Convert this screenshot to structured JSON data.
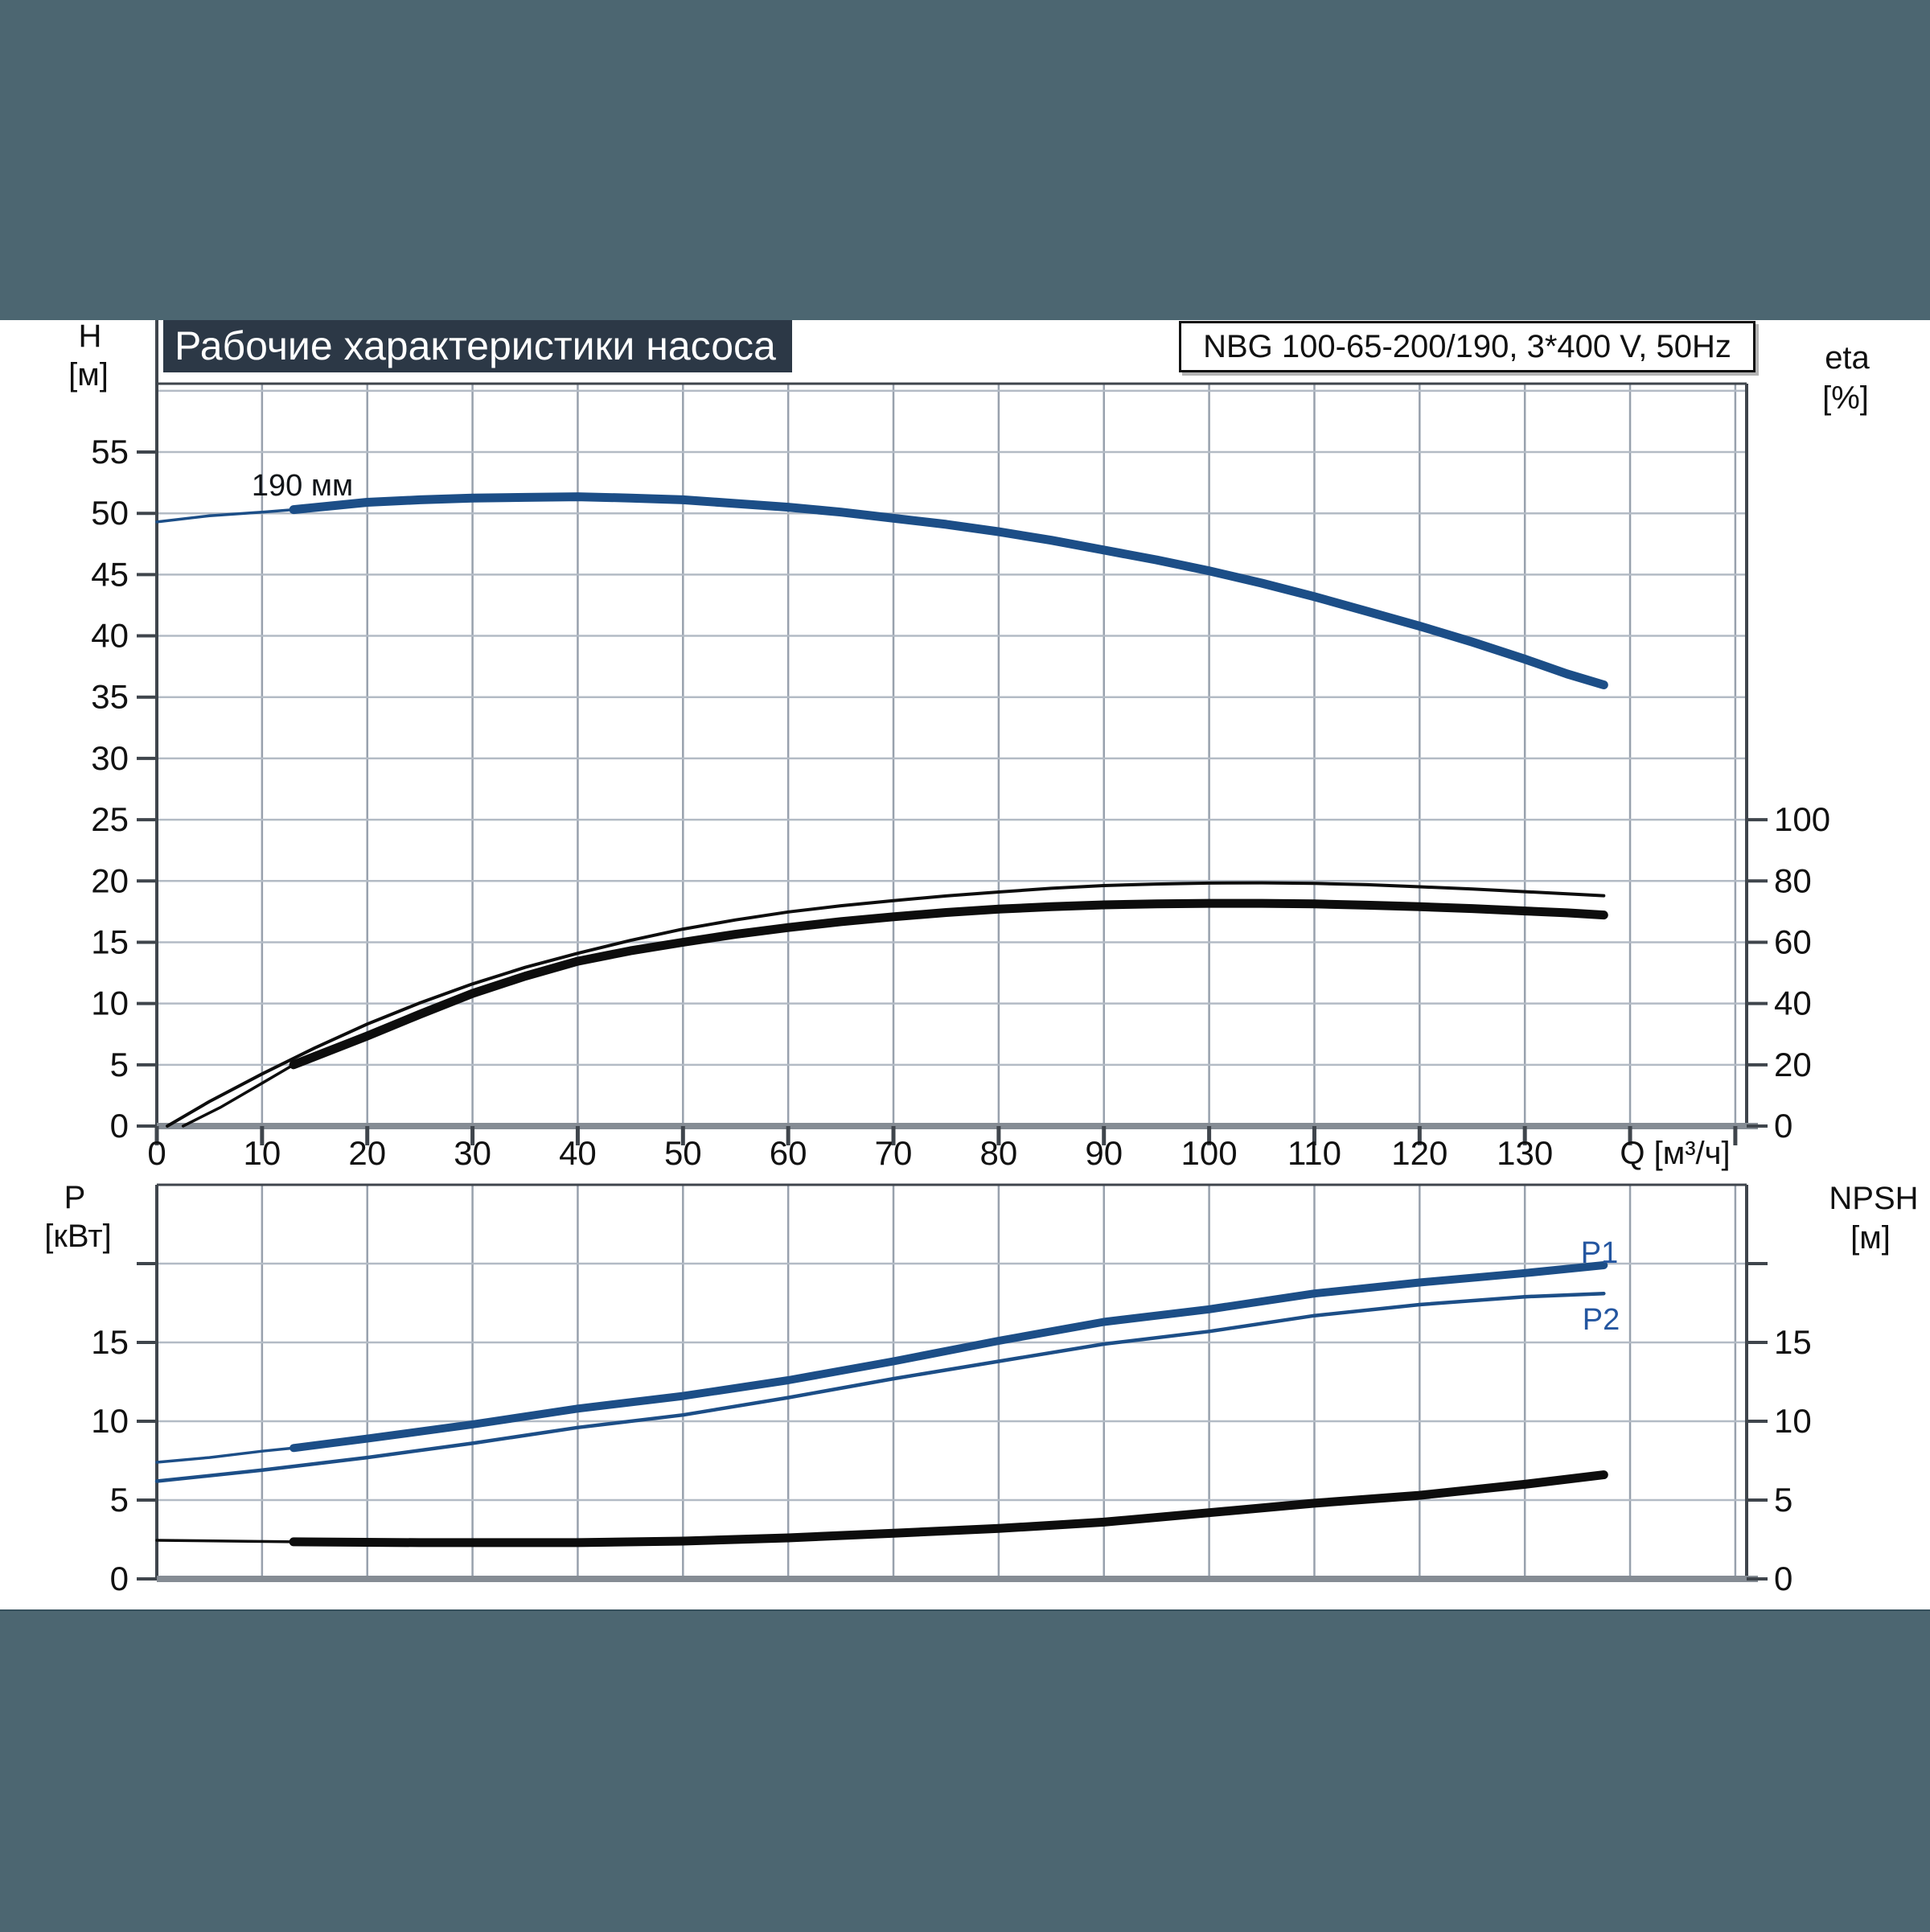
{
  "banner": {
    "title": "Рабочие характеристики насоса",
    "model": "NBG 100-65-200/190, 3*400 V, 50Hz"
  },
  "axes": {
    "h": {
      "label": "H",
      "unit": "[м]"
    },
    "eta": {
      "label": "eta",
      "unit": "[%]"
    },
    "q": {
      "label": "Q [м³/ч]"
    },
    "p": {
      "label": "P",
      "unit": "[кВт]"
    },
    "npsh": {
      "label": "NPSH",
      "unit": "[м]"
    }
  },
  "colors": {
    "band": "#4c6671",
    "title_box": "#2c3846",
    "curve_blue": "#1c4e87",
    "curve_black": "#0d0d0d",
    "grid_vertical": "#98a1ad",
    "grid_horizontal": "#b3bbc5",
    "frame": "#3f454c",
    "baseline": "#858c94"
  },
  "chart_data": [
    {
      "type": "line",
      "title": "Рабочие характеристики насоса",
      "xlabel": "Q [м³/ч]",
      "ylabel_left": "H [м]",
      "ylabel_right": "eta [%]",
      "x_ticks_labeled": [
        0,
        10,
        20,
        30,
        40,
        50,
        60,
        70,
        80,
        90,
        100,
        110,
        120,
        130
      ],
      "x_grid_max": 150,
      "xlim": [
        0,
        151
      ],
      "ylim_left": [
        0,
        60.6
      ],
      "y_left_tick_labels": [
        55,
        50,
        45,
        40,
        35,
        30,
        25,
        20,
        15,
        10,
        5,
        0
      ],
      "y_right_tick_labels": [
        100,
        80,
        60,
        40,
        20,
        0
      ],
      "right_axis_scale": "eta 100% aligns with H 25 м (eta = 4 × H)",
      "grid": true,
      "series": [
        {
          "name": "head-190mm",
          "label": "190 мм",
          "axis": "left",
          "color": "#1c4e87",
          "width": 11,
          "lead": [
            [
              0,
              49.3
            ],
            [
              5,
              49.8
            ],
            [
              10,
              50.1
            ],
            [
              13,
              50.3
            ]
          ],
          "points": [
            [
              13,
              50.3
            ],
            [
              20,
              50.9
            ],
            [
              25,
              51.1
            ],
            [
              30,
              51.25
            ],
            [
              35,
              51.3
            ],
            [
              40,
              51.35
            ],
            [
              45,
              51.25
            ],
            [
              50,
              51.1
            ],
            [
              55,
              50.8
            ],
            [
              60,
              50.5
            ],
            [
              65,
              50.1
            ],
            [
              70,
              49.6
            ],
            [
              75,
              49.1
            ],
            [
              80,
              48.5
            ],
            [
              85,
              47.8
            ],
            [
              90,
              47.0
            ],
            [
              95,
              46.2
            ],
            [
              100,
              45.3
            ],
            [
              105,
              44.3
            ],
            [
              110,
              43.2
            ],
            [
              115,
              42.0
            ],
            [
              120,
              40.8
            ],
            [
              125,
              39.5
            ],
            [
              130,
              38.1
            ],
            [
              134,
              36.9
            ],
            [
              137.5,
              36.0
            ]
          ]
        },
        {
          "name": "eta-pump-thin",
          "label": "",
          "axis": "right",
          "color": "#0d0d0d",
          "width": 4,
          "points": [
            [
              1,
              0
            ],
            [
              5,
              8
            ],
            [
              10,
              17
            ],
            [
              15,
              25.5
            ],
            [
              20,
              33.3
            ],
            [
              25,
              40.2
            ],
            [
              30,
              46.4
            ],
            [
              35,
              51.8
            ],
            [
              40,
              56.4
            ],
            [
              45,
              60.6
            ],
            [
              50,
              64.3
            ],
            [
              55,
              67.3
            ],
            [
              60,
              69.9
            ],
            [
              65,
              71.9
            ],
            [
              70,
              73.6
            ],
            [
              75,
              75.1
            ],
            [
              80,
              76.4
            ],
            [
              85,
              77.6
            ],
            [
              90,
              78.5
            ],
            [
              95,
              79.0
            ],
            [
              100,
              79.3
            ],
            [
              105,
              79.4
            ],
            [
              110,
              79.2
            ],
            [
              115,
              78.8
            ],
            [
              120,
              78.1
            ],
            [
              125,
              77.4
            ],
            [
              130,
              76.5
            ],
            [
              134,
              75.8
            ],
            [
              137.5,
              75.2
            ]
          ]
        },
        {
          "name": "eta-total-thick",
          "label": "",
          "axis": "right",
          "color": "#0d0d0d",
          "width": 11,
          "lead": [
            [
              2.5,
              0
            ],
            [
              6,
              6
            ],
            [
              10,
              14
            ],
            [
              13,
              20
            ]
          ],
          "points": [
            [
              13,
              20
            ],
            [
              20,
              29.4
            ],
            [
              25,
              36.5
            ],
            [
              30,
              43.3
            ],
            [
              35,
              48.9
            ],
            [
              40,
              53.8
            ],
            [
              45,
              57.2
            ],
            [
              50,
              60.0
            ],
            [
              55,
              62.6
            ],
            [
              60,
              64.8
            ],
            [
              65,
              66.7
            ],
            [
              70,
              68.3
            ],
            [
              75,
              69.7
            ],
            [
              80,
              70.8
            ],
            [
              85,
              71.6
            ],
            [
              90,
              72.2
            ],
            [
              95,
              72.5
            ],
            [
              100,
              72.7
            ],
            [
              105,
              72.7
            ],
            [
              110,
              72.5
            ],
            [
              115,
              72.1
            ],
            [
              120,
              71.6
            ],
            [
              125,
              71.0
            ],
            [
              130,
              70.2
            ],
            [
              134,
              69.6
            ],
            [
              137.5,
              68.9
            ]
          ]
        }
      ]
    },
    {
      "type": "line",
      "xlabel": "Q [м³/ч]",
      "ylabel_left": "P [кВт]",
      "ylabel_right": "NPSH [м]",
      "x_grid_max": 150,
      "xlim": [
        0,
        151
      ],
      "ylim_left": [
        0,
        25
      ],
      "y_left_tick_labels": [
        15,
        10,
        5,
        0
      ],
      "y_right_tick_labels": [
        15,
        10,
        5,
        0
      ],
      "grid": true,
      "series": [
        {
          "name": "p1",
          "label": "P1",
          "axis": "left",
          "color": "#1c4e87",
          "width": 10,
          "lead": [
            [
              0,
              7.4
            ],
            [
              5,
              7.7
            ],
            [
              10,
              8.1
            ],
            [
              13,
              8.3
            ]
          ],
          "points": [
            [
              13,
              8.3
            ],
            [
              20,
              8.9
            ],
            [
              30,
              9.8
            ],
            [
              40,
              10.8
            ],
            [
              50,
              11.6
            ],
            [
              60,
              12.6
            ],
            [
              70,
              13.8
            ],
            [
              80,
              15.1
            ],
            [
              90,
              16.3
            ],
            [
              100,
              17.1
            ],
            [
              110,
              18.1
            ],
            [
              120,
              18.8
            ],
            [
              130,
              19.4
            ],
            [
              137.5,
              19.9
            ]
          ]
        },
        {
          "name": "p2",
          "label": "P2",
          "axis": "left",
          "color": "#1c4e87",
          "width": 4.5,
          "points": [
            [
              0,
              6.2
            ],
            [
              10,
              6.9
            ],
            [
              20,
              7.7
            ],
            [
              30,
              8.6
            ],
            [
              40,
              9.6
            ],
            [
              50,
              10.4
            ],
            [
              60,
              11.5
            ],
            [
              70,
              12.7
            ],
            [
              80,
              13.8
            ],
            [
              90,
              14.9
            ],
            [
              100,
              15.7
            ],
            [
              110,
              16.7
            ],
            [
              120,
              17.4
            ],
            [
              130,
              17.9
            ],
            [
              137.5,
              18.1
            ]
          ]
        },
        {
          "name": "npsh",
          "label": "",
          "axis": "right",
          "color": "#0d0d0d",
          "width": 11,
          "lead": [
            [
              0,
              2.45
            ],
            [
              7,
              2.4
            ],
            [
              13,
              2.35
            ]
          ],
          "points": [
            [
              13,
              2.35
            ],
            [
              25,
              2.3
            ],
            [
              40,
              2.3
            ],
            [
              50,
              2.4
            ],
            [
              60,
              2.6
            ],
            [
              70,
              2.9
            ],
            [
              80,
              3.2
            ],
            [
              90,
              3.6
            ],
            [
              100,
              4.2
            ],
            [
              110,
              4.8
            ],
            [
              120,
              5.3
            ],
            [
              130,
              6.0
            ],
            [
              137.5,
              6.6
            ]
          ]
        }
      ]
    }
  ]
}
